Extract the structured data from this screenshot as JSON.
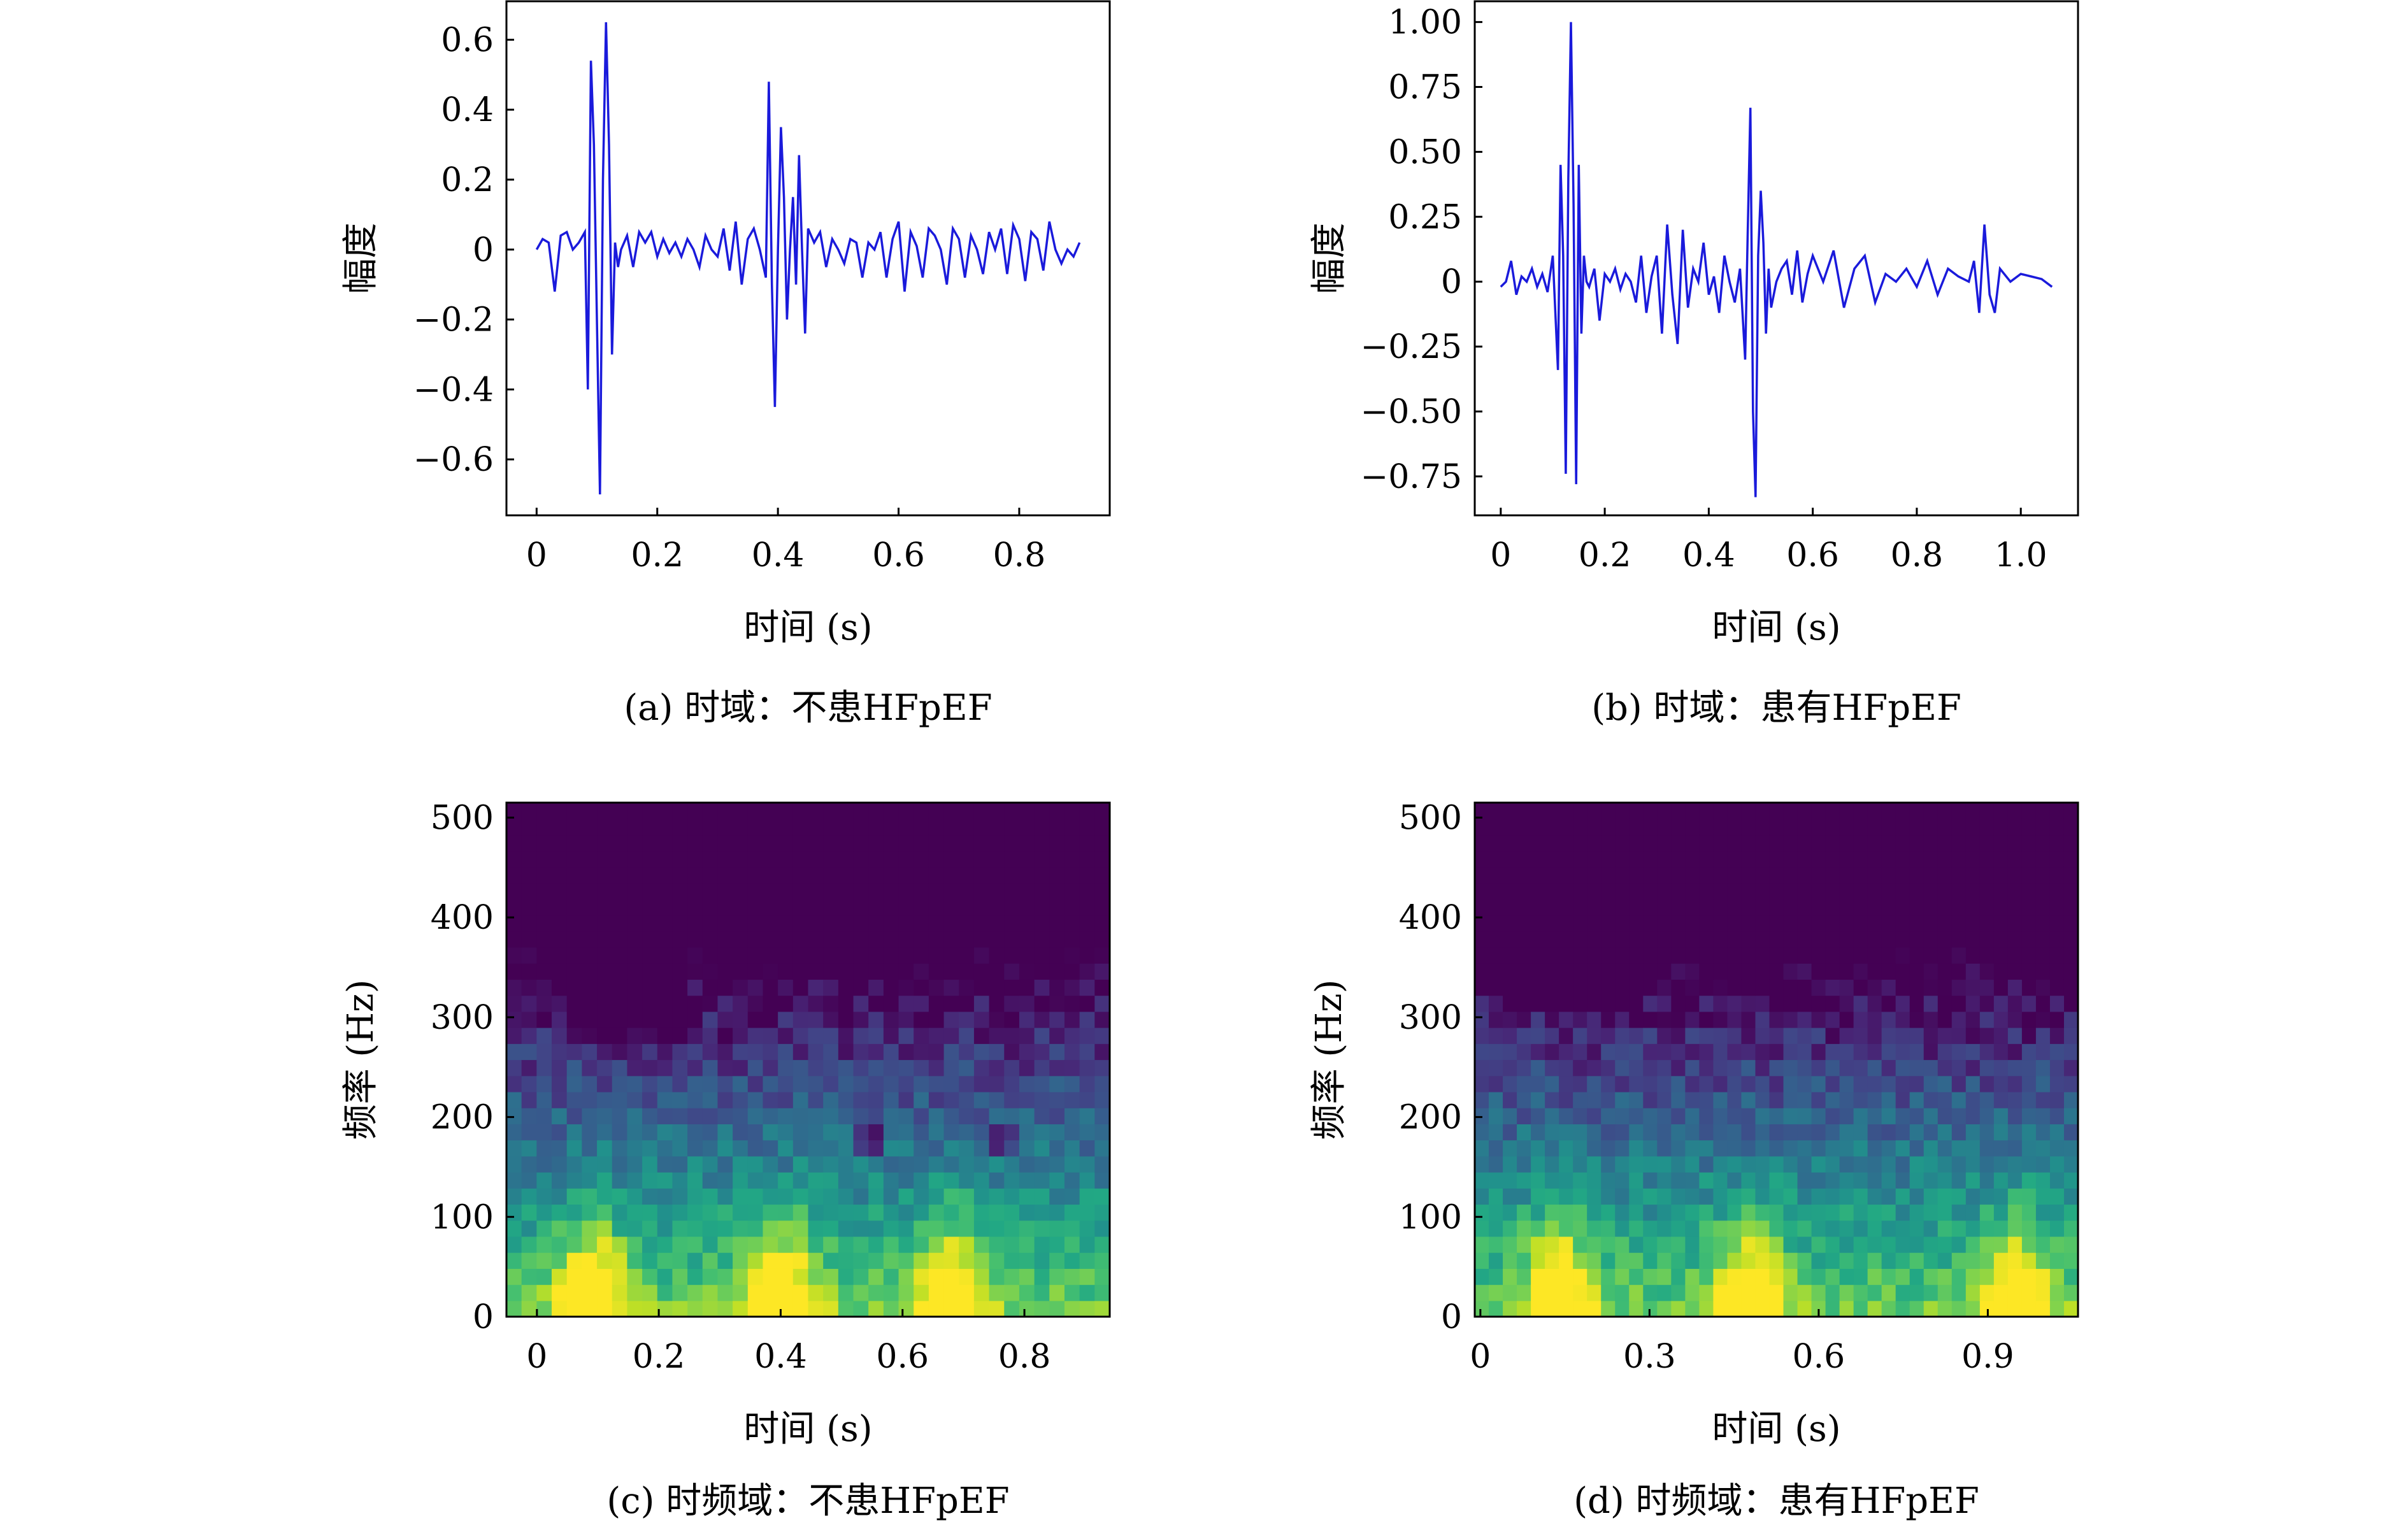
{
  "colors": {
    "signal": "#1a1adb",
    "axis": "#000000"
  },
  "colormap": [
    "#440154",
    "#482475",
    "#414487",
    "#355f8d",
    "#2a788e",
    "#21918c",
    "#22a884",
    "#44bf70",
    "#7ad151",
    "#bddf26",
    "#fde725"
  ],
  "chart_data": [
    {
      "id": "a",
      "type": "line",
      "caption": "(a) 时域：不患HFpEF",
      "xlabel": "时间 (s)",
      "ylabel": "幅度",
      "xlim": [
        -0.05,
        0.95
      ],
      "ylim": [
        -0.76,
        0.71
      ],
      "xticks": [
        0,
        0.2,
        0.4,
        0.6,
        0.8
      ],
      "xtick_labels": [
        "0",
        "0.2",
        "0.4",
        "0.6",
        "0.8"
      ],
      "yticks": [
        0.6,
        0.4,
        0.2,
        0,
        -0.2,
        -0.4,
        -0.6
      ],
      "ytick_labels": [
        "0.6",
        "0.4",
        "0.2",
        "0",
        "−0.2",
        "−0.4",
        "−0.6"
      ],
      "x": [
        0,
        0.01,
        0.02,
        0.03,
        0.04,
        0.05,
        0.06,
        0.07,
        0.08,
        0.085,
        0.09,
        0.095,
        0.1,
        0.105,
        0.11,
        0.115,
        0.12,
        0.125,
        0.13,
        0.135,
        0.14,
        0.145,
        0.15,
        0.16,
        0.17,
        0.18,
        0.19,
        0.2,
        0.21,
        0.22,
        0.23,
        0.24,
        0.25,
        0.26,
        0.27,
        0.28,
        0.29,
        0.3,
        0.31,
        0.32,
        0.33,
        0.34,
        0.35,
        0.36,
        0.37,
        0.38,
        0.385,
        0.39,
        0.395,
        0.4,
        0.405,
        0.41,
        0.415,
        0.42,
        0.425,
        0.43,
        0.435,
        0.44,
        0.445,
        0.45,
        0.46,
        0.47,
        0.48,
        0.49,
        0.5,
        0.51,
        0.52,
        0.53,
        0.54,
        0.55,
        0.56,
        0.57,
        0.58,
        0.59,
        0.6,
        0.61,
        0.62,
        0.63,
        0.64,
        0.65,
        0.66,
        0.67,
        0.68,
        0.69,
        0.7,
        0.71,
        0.72,
        0.73,
        0.74,
        0.75,
        0.76,
        0.77,
        0.78,
        0.79,
        0.8,
        0.81,
        0.82,
        0.83,
        0.84,
        0.85,
        0.86,
        0.87,
        0.88,
        0.89,
        0.9
      ],
      "y": [
        0,
        0.03,
        0.02,
        -0.12,
        0.04,
        0.05,
        0.0,
        0.02,
        0.05,
        -0.4,
        0.54,
        0.3,
        -0.2,
        -0.7,
        0.2,
        0.65,
        0.3,
        -0.3,
        0.02,
        -0.05,
        0.0,
        0.02,
        0.04,
        -0.05,
        0.05,
        0.02,
        0.05,
        -0.02,
        0.03,
        -0.01,
        0.02,
        -0.02,
        0.03,
        0.0,
        -0.05,
        0.04,
        0.0,
        -0.02,
        0.06,
        -0.06,
        0.08,
        -0.1,
        0.03,
        0.06,
        0.0,
        -0.08,
        0.48,
        -0.1,
        -0.45,
        0.0,
        0.35,
        0.15,
        -0.2,
        0.0,
        0.15,
        -0.1,
        0.27,
        0.0,
        -0.24,
        0.06,
        0.02,
        0.05,
        -0.05,
        0.03,
        0.0,
        -0.04,
        0.03,
        0.02,
        -0.08,
        0.02,
        0.0,
        0.05,
        -0.08,
        0.03,
        0.08,
        -0.12,
        0.05,
        0.01,
        -0.08,
        0.06,
        0.04,
        0.0,
        -0.1,
        0.06,
        0.03,
        -0.08,
        0.04,
        0.0,
        -0.07,
        0.05,
        0.0,
        0.06,
        -0.07,
        0.07,
        0.03,
        -0.09,
        0.05,
        0.03,
        -0.06,
        0.08,
        0.0,
        -0.04,
        0.0,
        -0.02,
        0.02
      ],
      "grid": false
    },
    {
      "id": "b",
      "type": "line",
      "caption": "(b) 时域：患有HFpEF",
      "xlabel": "时间 (s)",
      "ylabel": "幅度",
      "xlim": [
        -0.05,
        1.11
      ],
      "ylim": [
        -0.9,
        1.08
      ],
      "xticks": [
        0,
        0.2,
        0.4,
        0.6,
        0.8,
        1.0
      ],
      "xtick_labels": [
        "0",
        "0.2",
        "0.4",
        "0.6",
        "0.8",
        "1.0"
      ],
      "yticks": [
        1.0,
        0.75,
        0.5,
        0.25,
        0,
        -0.25,
        -0.5,
        -0.75
      ],
      "ytick_labels": [
        "1.00",
        "0.75",
        "0.50",
        "0.25",
        "0",
        "−0.25",
        "−0.50",
        "−0.75"
      ],
      "x": [
        0,
        0.01,
        0.02,
        0.03,
        0.04,
        0.05,
        0.06,
        0.07,
        0.08,
        0.09,
        0.1,
        0.11,
        0.115,
        0.12,
        0.125,
        0.13,
        0.135,
        0.14,
        0.145,
        0.15,
        0.155,
        0.16,
        0.165,
        0.17,
        0.18,
        0.19,
        0.2,
        0.21,
        0.22,
        0.23,
        0.24,
        0.25,
        0.26,
        0.27,
        0.28,
        0.29,
        0.3,
        0.31,
        0.32,
        0.33,
        0.34,
        0.35,
        0.36,
        0.37,
        0.38,
        0.39,
        0.4,
        0.41,
        0.42,
        0.43,
        0.44,
        0.45,
        0.46,
        0.47,
        0.475,
        0.48,
        0.485,
        0.49,
        0.495,
        0.5,
        0.505,
        0.51,
        0.515,
        0.52,
        0.53,
        0.54,
        0.55,
        0.56,
        0.57,
        0.58,
        0.59,
        0.6,
        0.62,
        0.64,
        0.66,
        0.68,
        0.7,
        0.72,
        0.74,
        0.76,
        0.78,
        0.8,
        0.82,
        0.84,
        0.86,
        0.88,
        0.9,
        0.91,
        0.92,
        0.93,
        0.94,
        0.95,
        0.96,
        0.98,
        1.0,
        1.02,
        1.04,
        1.06
      ],
      "y": [
        -0.02,
        0.0,
        0.08,
        -0.05,
        0.02,
        0.0,
        0.05,
        -0.02,
        0.03,
        -0.04,
        0.1,
        -0.34,
        0.45,
        0.1,
        -0.74,
        0.4,
        1.0,
        0.3,
        -0.78,
        0.45,
        -0.2,
        0.1,
        0.0,
        -0.02,
        0.05,
        -0.15,
        0.03,
        0.0,
        0.05,
        -0.03,
        0.03,
        0.0,
        -0.08,
        0.1,
        -0.12,
        0.02,
        0.1,
        -0.2,
        0.22,
        -0.05,
        -0.24,
        0.2,
        -0.1,
        0.05,
        0.0,
        0.15,
        -0.05,
        0.02,
        -0.12,
        0.1,
        0.0,
        -0.08,
        0.05,
        -0.3,
        0.2,
        0.67,
        -0.5,
        -0.83,
        0.1,
        0.35,
        0.15,
        -0.2,
        0.05,
        -0.1,
        0.0,
        0.05,
        0.08,
        -0.05,
        0.12,
        -0.08,
        0.03,
        0.1,
        0.0,
        0.12,
        -0.1,
        0.05,
        0.1,
        -0.08,
        0.03,
        0.0,
        0.05,
        -0.02,
        0.08,
        -0.05,
        0.05,
        0.02,
        0.0,
        0.08,
        -0.12,
        0.22,
        -0.05,
        -0.12,
        0.05,
        0.0,
        0.03,
        0.02,
        0.01,
        -0.02
      ],
      "grid": false
    },
    {
      "id": "c",
      "type": "heatmap",
      "caption": "(c) 时频域：不患HFpEF",
      "xlabel": "时间 (s)",
      "ylabel": "频率 (Hz)",
      "xlim": [
        -0.05,
        0.94
      ],
      "ylim": [
        0,
        515
      ],
      "xticks": [
        0,
        0.2,
        0.4,
        0.6,
        0.8
      ],
      "xtick_labels": [
        "0",
        "0.2",
        "0.4",
        "0.6",
        "0.8"
      ],
      "yticks": [
        0,
        100,
        200,
        300,
        400,
        500
      ],
      "ytick_labels": [
        "0",
        "100",
        "200",
        "300",
        "400",
        "500"
      ],
      "cols": 40,
      "rows": 32,
      "peaks_s": [
        0.09,
        0.4,
        0.68
      ],
      "dark_regions": [
        [
          0.05,
          0.25,
          280,
          515
        ],
        [
          0.45,
          0.62,
          330,
          515
        ],
        [
          0.52,
          0.58,
          160,
          200
        ],
        [
          0.75,
          0.8,
          160,
          200
        ]
      ],
      "grid": false
    },
    {
      "id": "d",
      "type": "heatmap",
      "caption": "(d) 时频域：患有HFpEF",
      "xlabel": "时间 (s)",
      "ylabel": "频率 (Hz)",
      "xlim": [
        -0.01,
        1.06
      ],
      "ylim": [
        0,
        515
      ],
      "xticks": [
        0,
        0.3,
        0.6,
        0.9
      ],
      "xtick_labels": [
        "0",
        "0.3",
        "0.6",
        "0.9"
      ],
      "yticks": [
        0,
        100,
        200,
        300,
        400,
        500
      ],
      "ytick_labels": [
        "0",
        "100",
        "200",
        "300",
        "400",
        "500"
      ],
      "cols": 43,
      "rows": 32,
      "peaks_s": [
        0.14,
        0.48,
        0.95
      ],
      "dark_regions": [
        [
          0.03,
          0.3,
          300,
          515
        ],
        [
          0.4,
          0.6,
          350,
          515
        ]
      ],
      "grid": false
    }
  ]
}
